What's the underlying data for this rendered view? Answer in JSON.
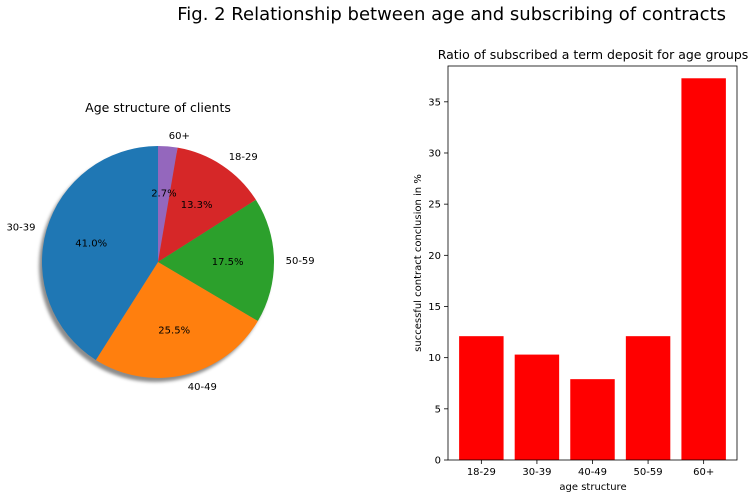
{
  "figure_title": "Fig. 2 Relationship between age and subscribing of contracts",
  "chart_data": [
    {
      "type": "pie",
      "title": "Age structure of clients",
      "labels": [
        "60+",
        "18-29",
        "50-59",
        "40-49",
        "30-39"
      ],
      "values": [
        2.7,
        13.3,
        17.5,
        25.5,
        41.0
      ],
      "value_labels": [
        "2.7%",
        "13.3%",
        "17.5%",
        "25.5%",
        "41.0%"
      ],
      "colors": [
        "#9467bd",
        "#d62728",
        "#2ca02c",
        "#ff7f0e",
        "#1f77b4"
      ],
      "start_angle_deg": 90,
      "direction": "clockwise",
      "shadow": true
    },
    {
      "type": "bar",
      "title": "Ratio of subscribed a term deposit for age groups",
      "categories": [
        "18-29",
        "30-39",
        "40-49",
        "50-59",
        "60+"
      ],
      "values": [
        12.1,
        10.3,
        7.9,
        12.1,
        37.3
      ],
      "xlabel": "age structure",
      "ylabel": "successful contract conclusion in %",
      "ylim": [
        0,
        38.5
      ],
      "yticks": [
        0,
        5,
        10,
        15,
        20,
        25,
        30,
        35
      ],
      "bar_color": "#ff0000",
      "grid": false
    }
  ]
}
